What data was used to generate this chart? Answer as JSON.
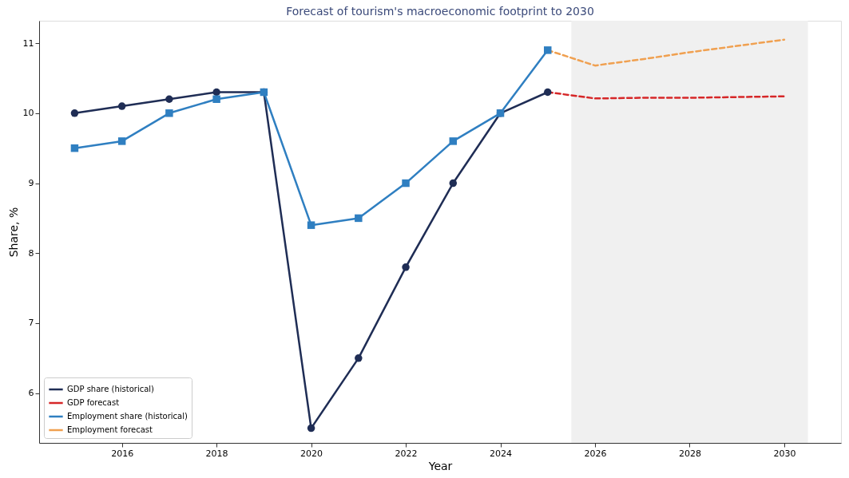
{
  "chart_data": {
    "type": "line",
    "title": "Forecast of tourism's macroeconomic footprint to 2030",
    "xlabel": "Year",
    "ylabel": "Share, %",
    "xlim": [
      2014.25,
      2031.2
    ],
    "xticks": [
      2016,
      2018,
      2020,
      2022,
      2024,
      2026,
      2028,
      2030
    ],
    "ylim": [
      5.29,
      11.32
    ],
    "yticks": [
      6,
      7,
      8,
      9,
      10,
      11
    ],
    "grid": false,
    "legend": "bottom left",
    "bands": [
      {
        "axis": "x",
        "from": 2025.5,
        "to": 2030.5,
        "color": "#f0f0f0"
      }
    ],
    "series": [
      {
        "name": "GDP share (historical)",
        "color": "#1f2d55",
        "marker": "circle",
        "line_style": "solid",
        "x": [
          2015,
          2016,
          2017,
          2018,
          2019,
          2020,
          2021,
          2022,
          2023,
          2024,
          2025
        ],
        "values": [
          10.0,
          10.1,
          10.2,
          10.3,
          10.3,
          5.5,
          6.5,
          7.8,
          9.0,
          10.0,
          10.3
        ]
      },
      {
        "name": "GDP forecast",
        "color": "#d62728",
        "marker": "none",
        "line_style": "dashed",
        "x": [
          2025,
          2026,
          2027,
          2028,
          2029,
          2030
        ],
        "values": [
          10.3,
          10.21,
          10.22,
          10.22,
          10.23,
          10.24
        ]
      },
      {
        "name": "Employment share (historical)",
        "color": "#2f7fc1",
        "marker": "square",
        "line_style": "solid",
        "x": [
          2015,
          2016,
          2017,
          2018,
          2019,
          2020,
          2021,
          2022,
          2023,
          2024,
          2025
        ],
        "values": [
          9.5,
          9.6,
          10.0,
          10.2,
          10.3,
          8.4,
          8.5,
          9.0,
          9.6,
          10.0,
          10.9
        ]
      },
      {
        "name": "Employment forecast",
        "color": "#f0a050",
        "marker": "none",
        "line_style": "dashed",
        "x": [
          2025,
          2026,
          2027,
          2028,
          2029,
          2030
        ],
        "values": [
          10.9,
          10.68,
          10.77,
          10.87,
          10.96,
          11.05
        ]
      }
    ]
  }
}
